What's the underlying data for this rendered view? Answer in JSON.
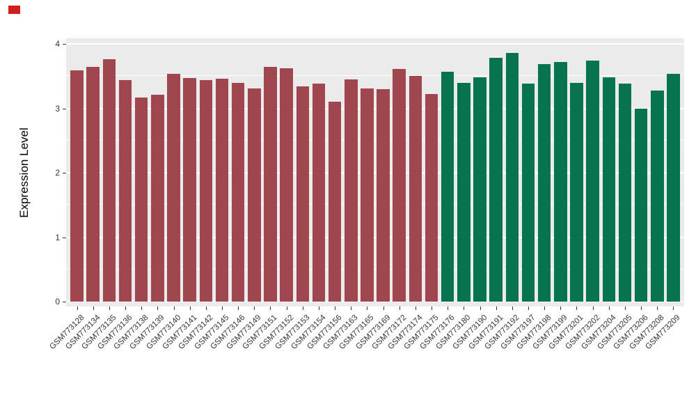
{
  "figure": {
    "background": "#ffffff",
    "decor": {
      "top_left_marker_color": "#cf2020"
    }
  },
  "chart_data": {
    "type": "bar",
    "title": "",
    "xlabel": "",
    "ylabel": "Expression Level",
    "ylim": [
      0,
      4
    ],
    "yticks": [
      0,
      1,
      2,
      3,
      4
    ],
    "minor_ticks": [
      0.5,
      1.5,
      2.5,
      3.5
    ],
    "grid": true,
    "legend": "none",
    "panel_background": "#ebebeb",
    "grid_color": "#ffffff",
    "tick_label_color": "#333333",
    "group_colors": {
      "groupA": "#a0464f",
      "groupB": "#08734f"
    },
    "bars": [
      {
        "label": "GSM773128",
        "value": 3.59,
        "group": "groupA"
      },
      {
        "label": "GSM773134",
        "value": 3.64,
        "group": "groupA"
      },
      {
        "label": "GSM773135",
        "value": 3.76,
        "group": "groupA"
      },
      {
        "label": "GSM773136",
        "value": 3.44,
        "group": "groupA"
      },
      {
        "label": "GSM773138",
        "value": 3.17,
        "group": "groupA"
      },
      {
        "label": "GSM773139",
        "value": 3.21,
        "group": "groupA"
      },
      {
        "label": "GSM773140",
        "value": 3.53,
        "group": "groupA"
      },
      {
        "label": "GSM773141",
        "value": 3.47,
        "group": "groupA"
      },
      {
        "label": "GSM773142",
        "value": 3.44,
        "group": "groupA"
      },
      {
        "label": "GSM773145",
        "value": 3.46,
        "group": "groupA"
      },
      {
        "label": "GSM773146",
        "value": 3.39,
        "group": "groupA"
      },
      {
        "label": "GSM773149",
        "value": 3.31,
        "group": "groupA"
      },
      {
        "label": "GSM773151",
        "value": 3.64,
        "group": "groupA"
      },
      {
        "label": "GSM773152",
        "value": 3.62,
        "group": "groupA"
      },
      {
        "label": "GSM773153",
        "value": 3.34,
        "group": "groupA"
      },
      {
        "label": "GSM773154",
        "value": 3.38,
        "group": "groupA"
      },
      {
        "label": "GSM773156",
        "value": 3.1,
        "group": "groupA"
      },
      {
        "label": "GSM773163",
        "value": 3.45,
        "group": "groupA"
      },
      {
        "label": "GSM773165",
        "value": 3.31,
        "group": "groupA"
      },
      {
        "label": "GSM773169",
        "value": 3.3,
        "group": "groupA"
      },
      {
        "label": "GSM773172",
        "value": 3.61,
        "group": "groupA"
      },
      {
        "label": "GSM773174",
        "value": 3.5,
        "group": "groupA"
      },
      {
        "label": "GSM773175",
        "value": 3.22,
        "group": "groupA"
      },
      {
        "label": "GSM773176",
        "value": 3.57,
        "group": "groupB"
      },
      {
        "label": "GSM773180",
        "value": 3.39,
        "group": "groupB"
      },
      {
        "label": "GSM773190",
        "value": 3.48,
        "group": "groupB"
      },
      {
        "label": "GSM773191",
        "value": 3.78,
        "group": "groupB"
      },
      {
        "label": "GSM773192",
        "value": 3.86,
        "group": "groupB"
      },
      {
        "label": "GSM773197",
        "value": 3.38,
        "group": "groupB"
      },
      {
        "label": "GSM773198",
        "value": 3.69,
        "group": "groupB"
      },
      {
        "label": "GSM773199",
        "value": 3.72,
        "group": "groupB"
      },
      {
        "label": "GSM773201",
        "value": 3.39,
        "group": "groupB"
      },
      {
        "label": "GSM773202",
        "value": 3.74,
        "group": "groupB"
      },
      {
        "label": "GSM773204",
        "value": 3.48,
        "group": "groupB"
      },
      {
        "label": "GSM773205",
        "value": 3.38,
        "group": "groupB"
      },
      {
        "label": "GSM773206",
        "value": 3.0,
        "group": "groupB"
      },
      {
        "label": "GSM773208",
        "value": 3.28,
        "group": "groupB"
      },
      {
        "label": "GSM773209",
        "value": 3.54,
        "group": "groupB"
      }
    ]
  }
}
